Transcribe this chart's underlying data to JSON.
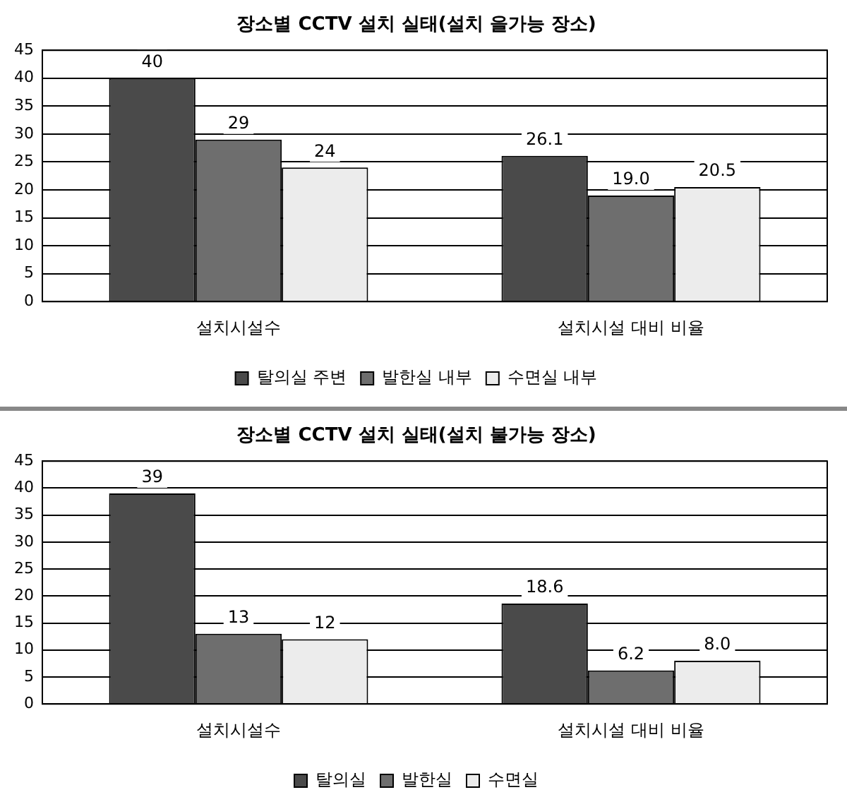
{
  "chart_data": [
    {
      "type": "bar",
      "title": "장소별 CCTV 설치 실태(설치 을가능 장소)",
      "categories": [
        "설치시설수",
        "설치시설 대비 비율"
      ],
      "series": [
        {
          "name": "탈의실 주변",
          "color": "#4a4a4a",
          "values": [
            40,
            26.1
          ],
          "value_labels": [
            "40",
            "26.1"
          ]
        },
        {
          "name": "발한실 내부",
          "color": "#6e6e6e",
          "values": [
            29,
            19.0
          ],
          "value_labels": [
            "29",
            "19.0"
          ]
        },
        {
          "name": "수면실 내부",
          "color": "#ececec",
          "values": [
            24,
            20.5
          ],
          "value_labels": [
            "24",
            "20.5"
          ]
        }
      ],
      "ylim": [
        0,
        45
      ],
      "yticks": [
        0,
        5,
        10,
        15,
        20,
        25,
        30,
        35,
        40,
        45
      ],
      "grid": "y",
      "legend": "bottom"
    },
    {
      "type": "bar",
      "title": "장소별 CCTV 설치 실태(설치 불가능 장소)",
      "categories": [
        "설치시설수",
        "설치시설 대비 비율"
      ],
      "series": [
        {
          "name": "탈의실",
          "color": "#4a4a4a",
          "values": [
            39,
            18.6
          ],
          "value_labels": [
            "39",
            "18.6"
          ]
        },
        {
          "name": "발한실",
          "color": "#6e6e6e",
          "values": [
            13,
            6.2
          ],
          "value_labels": [
            "13",
            "6.2"
          ]
        },
        {
          "name": "수면실",
          "color": "#ececec",
          "values": [
            12,
            8.0
          ],
          "value_labels": [
            "12",
            "8.0"
          ]
        }
      ],
      "ylim": [
        0,
        45
      ],
      "yticks": [
        0,
        5,
        10,
        15,
        20,
        25,
        30,
        35,
        40,
        45
      ],
      "grid": "y",
      "legend": "bottom"
    }
  ]
}
